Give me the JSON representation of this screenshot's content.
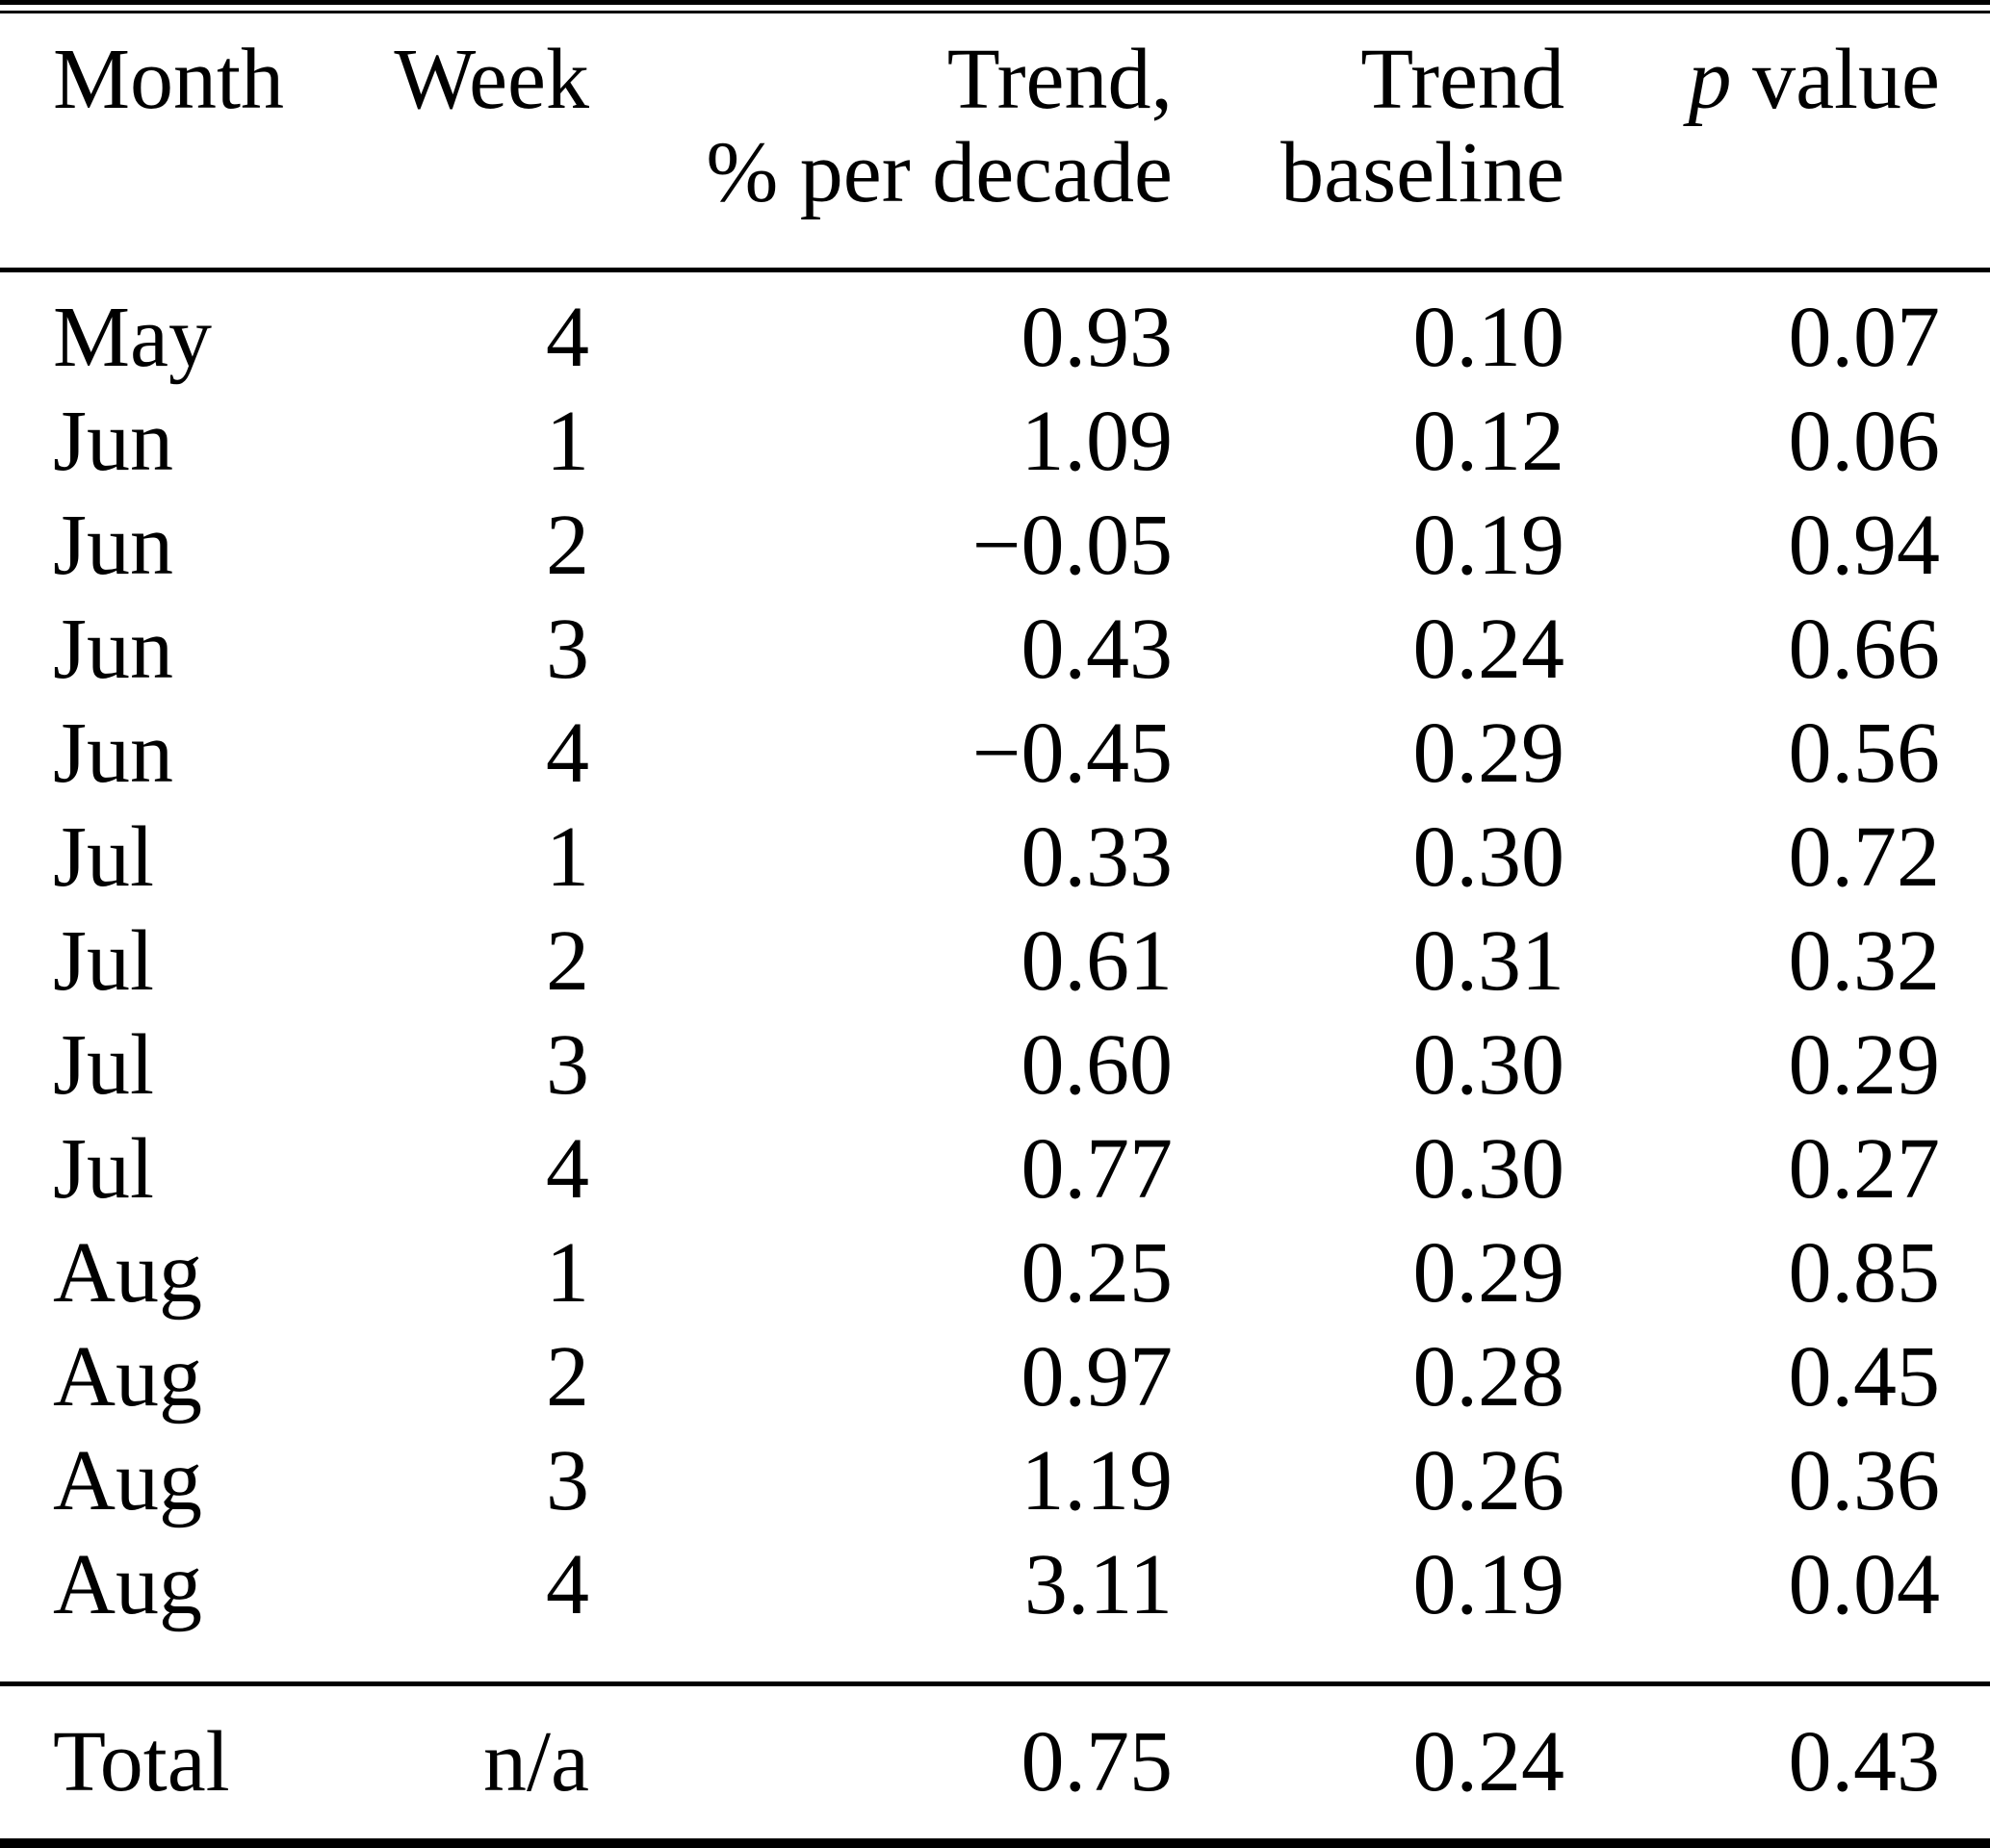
{
  "chart_data": {
    "type": "table",
    "header": {
      "col1": "Month",
      "col2": "Week",
      "col3_line1": "Trend,",
      "col3_line2": "% per decade",
      "col4_line1": "Trend",
      "col4_line2": "baseline",
      "col5_italic": "p",
      "col5_rest": "value"
    },
    "rows": [
      {
        "month": "May",
        "week": "4",
        "trend": "0.93",
        "baseline": "0.10",
        "p": "0.07"
      },
      {
        "month": "Jun",
        "week": "1",
        "trend": "1.09",
        "baseline": "0.12",
        "p": "0.06"
      },
      {
        "month": "Jun",
        "week": "2",
        "trend": "−0.05",
        "baseline": "0.19",
        "p": "0.94"
      },
      {
        "month": "Jun",
        "week": "3",
        "trend": "0.43",
        "baseline": "0.24",
        "p": "0.66"
      },
      {
        "month": "Jun",
        "week": "4",
        "trend": "−0.45",
        "baseline": "0.29",
        "p": "0.56"
      },
      {
        "month": "Jul",
        "week": "1",
        "trend": "0.33",
        "baseline": "0.30",
        "p": "0.72"
      },
      {
        "month": "Jul",
        "week": "2",
        "trend": "0.61",
        "baseline": "0.31",
        "p": "0.32"
      },
      {
        "month": "Jul",
        "week": "3",
        "trend": "0.60",
        "baseline": "0.30",
        "p": "0.29"
      },
      {
        "month": "Jul",
        "week": "4",
        "trend": "0.77",
        "baseline": "0.30",
        "p": "0.27"
      },
      {
        "month": "Aug",
        "week": "1",
        "trend": "0.25",
        "baseline": "0.29",
        "p": "0.85"
      },
      {
        "month": "Aug",
        "week": "2",
        "trend": "0.97",
        "baseline": "0.28",
        "p": "0.45"
      },
      {
        "month": "Aug",
        "week": "3",
        "trend": "1.19",
        "baseline": "0.26",
        "p": "0.36"
      },
      {
        "month": "Aug",
        "week": "4",
        "trend": "3.11",
        "baseline": "0.19",
        "p": "0.04"
      }
    ],
    "total": {
      "month": "Total",
      "week": "n/a",
      "trend": "0.75",
      "baseline": "0.24",
      "p": "0.43"
    }
  }
}
